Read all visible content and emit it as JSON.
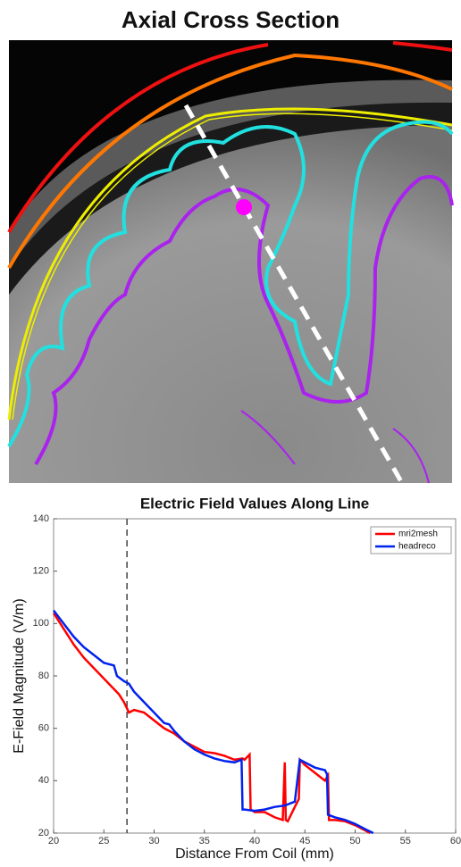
{
  "page_title": "Axial Cross Section",
  "chart_data": {
    "type": "line",
    "title": "Electric Field Values Along Line",
    "x_label": "Distance From Coil (mm)",
    "y_label": "E-Field Magnitude (V/m)",
    "xlim": [
      20,
      60
    ],
    "ylim": [
      20,
      140
    ],
    "xticks": [
      20,
      25,
      30,
      35,
      40,
      45,
      50,
      55,
      60
    ],
    "yticks": [
      20,
      40,
      60,
      80,
      100,
      120,
      140
    ],
    "grid": false,
    "legend": "upper right",
    "vline_x": 27.3,
    "series": [
      {
        "name": "mri2mesh",
        "color": "#ff0000",
        "x": [
          20,
          21,
          22,
          23,
          24,
          25,
          26,
          26.5,
          27,
          27.5,
          28,
          29,
          30,
          31,
          32,
          33,
          34,
          35,
          36,
          37,
          38,
          38.8,
          39,
          39.5,
          39.6,
          40,
          41,
          42,
          42.8,
          43,
          43.1,
          43.3,
          44,
          44.4,
          44.5,
          45,
          46,
          47,
          47.3,
          47.4,
          48,
          49,
          50,
          51,
          51.5
        ],
        "values": [
          104,
          98,
          92,
          87,
          83,
          79,
          75,
          73,
          70,
          66,
          67,
          66,
          63,
          60,
          58,
          55,
          53,
          51,
          50.5,
          49.5,
          48,
          48.5,
          48,
          50,
          29,
          28,
          28,
          26,
          25,
          47,
          25,
          24.5,
          30,
          33,
          48,
          46,
          43,
          40,
          42,
          25,
          25,
          24.5,
          23,
          21,
          20
        ]
      },
      {
        "name": "headreco",
        "color": "#0022ee",
        "x": [
          20,
          21,
          22,
          23,
          24,
          25,
          26,
          26.3,
          27,
          27.5,
          28,
          29,
          30,
          31,
          31.5,
          32,
          33,
          34,
          35,
          36,
          37,
          38,
          38.7,
          38.8,
          39,
          40,
          41,
          42,
          43,
          44,
          44.5,
          45,
          46,
          47,
          47.2,
          47.3,
          48,
          49,
          50,
          51,
          51.8
        ],
        "values": [
          105,
          100,
          95,
          91,
          88,
          85,
          84,
          80,
          78,
          77,
          74,
          70,
          66,
          62,
          61.5,
          59,
          55,
          52,
          50,
          48.5,
          47.5,
          47,
          48,
          29,
          29,
          28.5,
          29,
          30,
          30.5,
          32,
          48,
          47,
          45,
          44,
          42.5,
          27,
          26,
          25,
          23.5,
          21.5,
          20
        ]
      }
    ]
  }
}
